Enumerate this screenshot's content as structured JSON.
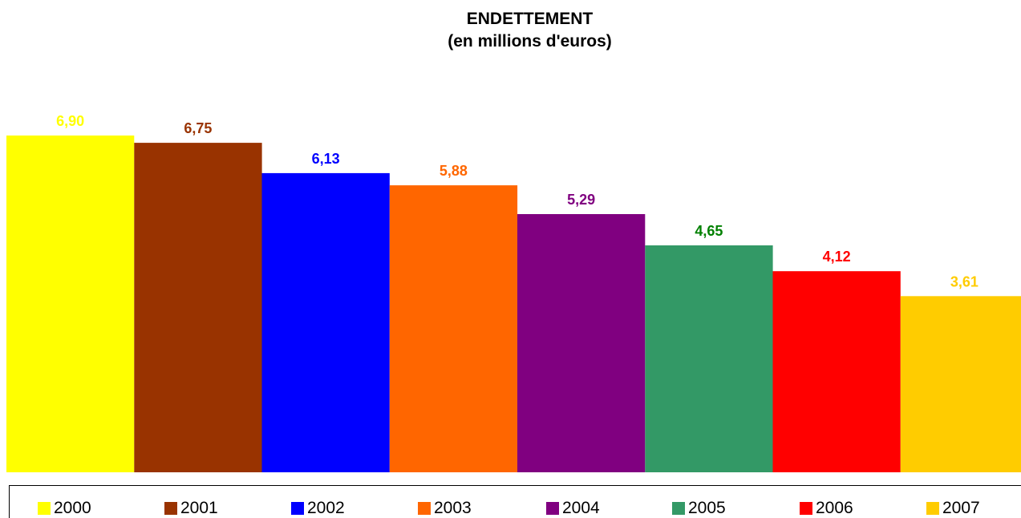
{
  "chart_data": {
    "type": "bar",
    "title": "ENDETTEMENT",
    "subtitle": "(en millions d'euros)",
    "categories": [
      "2000",
      "2001",
      "2002",
      "2003",
      "2004",
      "2005",
      "2006",
      "2007"
    ],
    "values": [
      6.9,
      6.75,
      6.13,
      5.88,
      5.29,
      4.65,
      4.12,
      3.61
    ],
    "data_labels": [
      "6,90",
      "6,75",
      "6,13",
      "5,88",
      "5,29",
      "4,65",
      "4,12",
      "3,61"
    ],
    "bar_colors": [
      "#FFFF00",
      "#993300",
      "#0000FF",
      "#FF6600",
      "#800080",
      "#339966",
      "#FF0000",
      "#FFCC00"
    ],
    "label_colors": [
      "#FFFF00",
      "#993300",
      "#0000FF",
      "#FF6600",
      "#800080",
      "#008000",
      "#FF0000",
      "#FFCC00"
    ],
    "ylim": [
      0,
      6.9
    ],
    "grid": false,
    "legend": "bottom"
  }
}
